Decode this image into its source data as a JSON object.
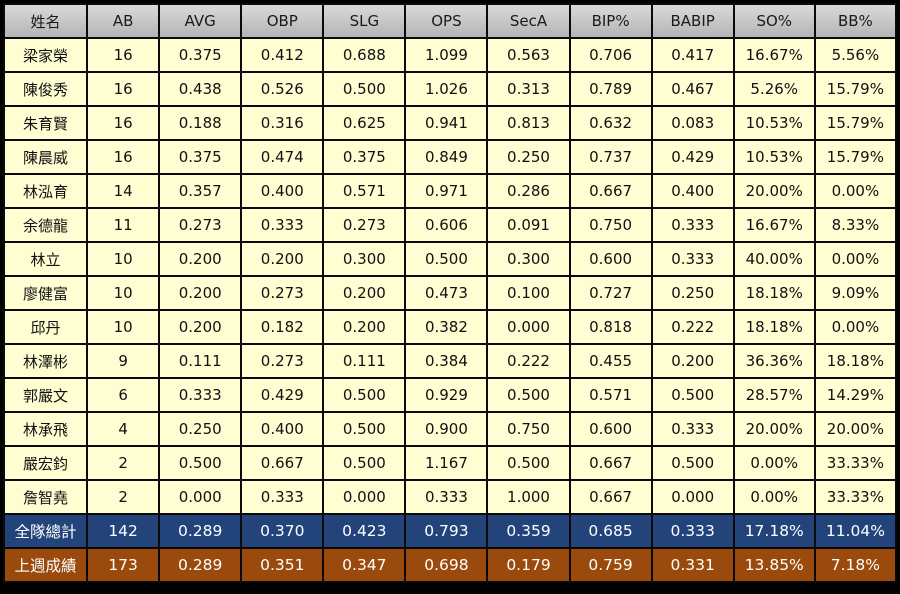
{
  "headers": [
    "姓名",
    "AB",
    "AVG",
    "OBP",
    "SLG",
    "OPS",
    "SecA",
    "BIP%",
    "BABIP",
    "SO%",
    "BB%"
  ],
  "rows": [
    [
      "梁家榮",
      "16",
      "0.375",
      "0.412",
      "0.688",
      "1.099",
      "0.563",
      "0.706",
      "0.417",
      "16.67%",
      "5.56%"
    ],
    [
      "陳俊秀",
      "16",
      "0.438",
      "0.526",
      "0.500",
      "1.026",
      "0.313",
      "0.789",
      "0.467",
      "5.26%",
      "15.79%"
    ],
    [
      "朱育賢",
      "16",
      "0.188",
      "0.316",
      "0.625",
      "0.941",
      "0.813",
      "0.632",
      "0.083",
      "10.53%",
      "15.79%"
    ],
    [
      "陳晨威",
      "16",
      "0.375",
      "0.474",
      "0.375",
      "0.849",
      "0.250",
      "0.737",
      "0.429",
      "10.53%",
      "15.79%"
    ],
    [
      "林泓育",
      "14",
      "0.357",
      "0.400",
      "0.571",
      "0.971",
      "0.286",
      "0.667",
      "0.400",
      "20.00%",
      "0.00%"
    ],
    [
      "余德龍",
      "11",
      "0.273",
      "0.333",
      "0.273",
      "0.606",
      "0.091",
      "0.750",
      "0.333",
      "16.67%",
      "8.33%"
    ],
    [
      "林立",
      "10",
      "0.200",
      "0.200",
      "0.300",
      "0.500",
      "0.300",
      "0.600",
      "0.333",
      "40.00%",
      "0.00%"
    ],
    [
      "廖健富",
      "10",
      "0.200",
      "0.273",
      "0.200",
      "0.473",
      "0.100",
      "0.727",
      "0.250",
      "18.18%",
      "9.09%"
    ],
    [
      "邱丹",
      "10",
      "0.200",
      "0.182",
      "0.200",
      "0.382",
      "0.000",
      "0.818",
      "0.222",
      "18.18%",
      "0.00%"
    ],
    [
      "林澤彬",
      "9",
      "0.111",
      "0.273",
      "0.111",
      "0.384",
      "0.222",
      "0.455",
      "0.200",
      "36.36%",
      "18.18%"
    ],
    [
      "郭嚴文",
      "6",
      "0.333",
      "0.429",
      "0.500",
      "0.929",
      "0.500",
      "0.571",
      "0.500",
      "28.57%",
      "14.29%"
    ],
    [
      "林承飛",
      "4",
      "0.250",
      "0.400",
      "0.500",
      "0.900",
      "0.750",
      "0.600",
      "0.333",
      "20.00%",
      "20.00%"
    ],
    [
      "嚴宏鈞",
      "2",
      "0.500",
      "0.667",
      "0.500",
      "1.167",
      "0.500",
      "0.667",
      "0.500",
      "0.00%",
      "33.33%"
    ],
    [
      "詹智堯",
      "2",
      "0.000",
      "0.333",
      "0.000",
      "0.333",
      "1.000",
      "0.667",
      "0.000",
      "0.00%",
      "33.33%"
    ]
  ],
  "team_total": [
    "全隊總計",
    "142",
    "0.289",
    "0.370",
    "0.423",
    "0.793",
    "0.359",
    "0.685",
    "0.333",
    "17.18%",
    "11.04%"
  ],
  "last_week": [
    "上週成績",
    "173",
    "0.289",
    "0.351",
    "0.347",
    "0.698",
    "0.179",
    "0.759",
    "0.331",
    "13.85%",
    "7.18%"
  ],
  "colors": {
    "row_bg": "#fffdd2",
    "header_bg": "#c8c8c8",
    "team_bg": "#22447a",
    "last_week_bg": "#9a4a0c"
  }
}
